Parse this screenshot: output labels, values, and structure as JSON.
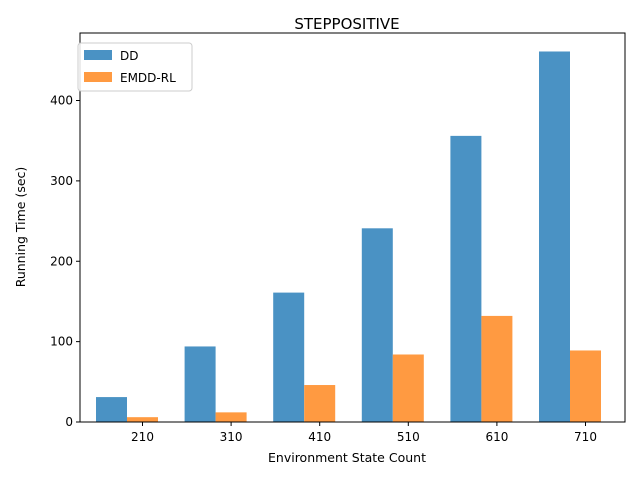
{
  "chart_data": {
    "type": "bar",
    "title": "STEPPOSITIVE",
    "xlabel": "Environment State Count",
    "ylabel": "Running Time (sec)",
    "categories": [
      "210",
      "310",
      "410",
      "510",
      "610",
      "710"
    ],
    "series": [
      {
        "name": "DD",
        "color": "#4a92c4",
        "values": [
          31,
          94,
          161,
          241,
          356,
          461
        ]
      },
      {
        "name": "EMDD-RL",
        "color": "#ff9a41",
        "values": [
          6,
          12,
          46,
          84,
          132,
          89
        ]
      }
    ],
    "ylim": [
      0,
      484
    ],
    "yticks": [
      0,
      100,
      200,
      300,
      400
    ],
    "grid": false,
    "legend": "top-left"
  }
}
